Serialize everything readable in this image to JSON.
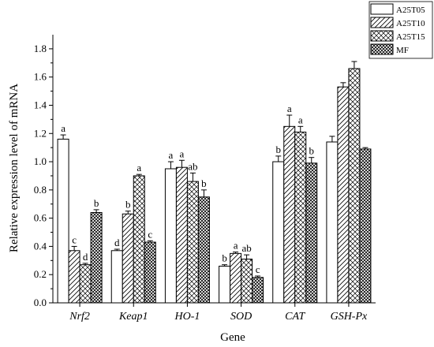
{
  "chart_data": {
    "type": "bar",
    "xlabel": "Gene",
    "ylabel": "Relative expression level of mRNA",
    "ylim": [
      0,
      1.9
    ],
    "yticks": [
      "0.0",
      "0.2",
      "0.4",
      "0.6",
      "0.8",
      "1.0",
      "1.2",
      "1.4",
      "1.6",
      "1.8"
    ],
    "categories": [
      "Nrf2",
      "Keap1",
      "HO-1",
      "SOD",
      "CAT",
      "GSH-Px"
    ],
    "legend_position": "top-right",
    "series": [
      {
        "name": "A25T05",
        "pattern": "blank",
        "values": [
          1.16,
          0.37,
          0.95,
          0.26,
          1.0,
          1.14
        ],
        "errors": [
          0.03,
          0.01,
          0.05,
          0.01,
          0.04,
          0.04
        ],
        "letters": [
          "a",
          "d",
          "a",
          "b",
          "b",
          ""
        ]
      },
      {
        "name": "A25T10",
        "pattern": "diagonal",
        "values": [
          0.37,
          0.63,
          0.96,
          0.35,
          1.25,
          1.53
        ],
        "errors": [
          0.03,
          0.02,
          0.05,
          0.01,
          0.08,
          0.03
        ],
        "letters": [
          "c",
          "b",
          "a",
          "a",
          "a",
          ""
        ]
      },
      {
        "name": "A25T15",
        "pattern": "crosshatch",
        "values": [
          0.27,
          0.9,
          0.86,
          0.31,
          1.21,
          1.66
        ],
        "errors": [
          0.01,
          0.01,
          0.06,
          0.03,
          0.04,
          0.05
        ],
        "letters": [
          "d",
          "a",
          "ab",
          "ab",
          "a",
          ""
        ]
      },
      {
        "name": "MF",
        "pattern": "dense-crosshatch",
        "values": [
          0.64,
          0.43,
          0.75,
          0.18,
          0.99,
          1.09
        ],
        "errors": [
          0.02,
          0.01,
          0.05,
          0.01,
          0.04,
          0.01
        ],
        "letters": [
          "b",
          "c",
          "b",
          "c",
          "b",
          ""
        ]
      }
    ]
  }
}
